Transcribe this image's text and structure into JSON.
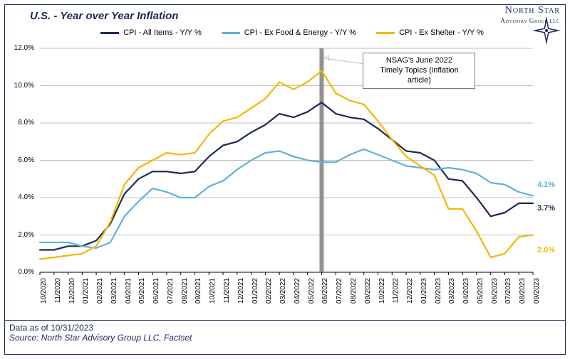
{
  "title": "U.S. - Year over Year Inflation",
  "logo": {
    "line1": "North Star",
    "line2": "Advisory Group",
    "llc": "LLC"
  },
  "footer": {
    "asof": "Data as of 10/31/2023",
    "source": "Source: North Star Advisory Group LLC, Factset"
  },
  "colors": {
    "border": "#1b2a57",
    "grid": "#bfbfbf",
    "axis": "#000000",
    "bg": "#ffffff",
    "series": {
      "all": "#1b2a57",
      "core": "#63b0d6",
      "exshelter": "#f2b705"
    },
    "marker_line": "#808080",
    "callout_leader": "#bfbfbf"
  },
  "chart": {
    "type": "line",
    "ylim": [
      0,
      12
    ],
    "ytick_step": 2,
    "ytick_suffix": ".0%",
    "line_width": 2.2,
    "x_labels": [
      "10/2020",
      "11/2020",
      "12/2020",
      "01/2021",
      "02/2021",
      "03/2021",
      "04/2021",
      "05/2021",
      "06/2021",
      "07/2021",
      "08/2021",
      "09/2021",
      "10/2021",
      "11/2021",
      "12/2021",
      "01/2022",
      "02/2022",
      "03/2022",
      "04/2022",
      "05/2022",
      "06/2022",
      "07/2022",
      "08/2022",
      "09/2022",
      "10/2022",
      "11/2022",
      "12/2022",
      "01/2023",
      "02/2023",
      "03/2023",
      "04/2023",
      "05/2023",
      "06/2023",
      "07/2023",
      "08/2023",
      "09/2023"
    ],
    "vertical_marker_index": 20,
    "callout": {
      "text_lines": [
        "NSAG's June 2022",
        "Timely Topics (inflation",
        "article)"
      ]
    },
    "series": [
      {
        "id": "all",
        "label": "CPI - All Items - Y/Y %",
        "end_label": "3.7%",
        "values": [
          1.2,
          1.2,
          1.4,
          1.4,
          1.7,
          2.6,
          4.2,
          5.0,
          5.4,
          5.4,
          5.3,
          5.4,
          6.2,
          6.8,
          7.0,
          7.5,
          7.9,
          8.5,
          8.3,
          8.6,
          9.1,
          8.5,
          8.3,
          8.2,
          7.7,
          7.1,
          6.5,
          6.4,
          6.0,
          5.0,
          4.9,
          4.0,
          3.0,
          3.2,
          3.7,
          3.7
        ]
      },
      {
        "id": "core",
        "label": "CPI - Ex Food & Energy - Y/Y %",
        "end_label": "4.1%",
        "values": [
          1.6,
          1.6,
          1.6,
          1.4,
          1.3,
          1.6,
          3.0,
          3.8,
          4.5,
          4.3,
          4.0,
          4.0,
          4.6,
          4.9,
          5.5,
          6.0,
          6.4,
          6.5,
          6.2,
          6.0,
          5.9,
          5.9,
          6.3,
          6.6,
          6.3,
          6.0,
          5.7,
          5.6,
          5.5,
          5.6,
          5.5,
          5.3,
          4.8,
          4.7,
          4.3,
          4.1
        ]
      },
      {
        "id": "exshelter",
        "label": "CPI - Ex Shelter - Y/Y %",
        "end_label": "2.0%",
        "values": [
          0.7,
          0.8,
          0.9,
          1.0,
          1.4,
          2.7,
          4.7,
          5.6,
          6.0,
          6.4,
          6.3,
          6.4,
          7.4,
          8.1,
          8.3,
          8.8,
          9.3,
          10.2,
          9.8,
          10.2,
          10.8,
          9.6,
          9.2,
          9.0,
          8.1,
          7.1,
          6.2,
          5.7,
          5.2,
          3.4,
          3.4,
          2.2,
          0.8,
          1.0,
          1.9,
          2.0
        ]
      }
    ]
  }
}
